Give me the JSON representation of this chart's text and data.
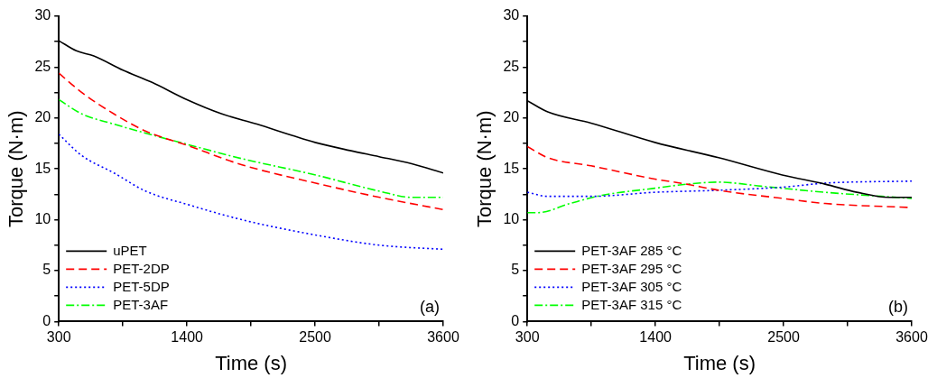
{
  "chart_data": [
    {
      "type": "line",
      "xlabel": "Time (s)",
      "ylabel": "Torque (N·m)",
      "annotations": [
        "(a)"
      ],
      "legend": "bottom left",
      "grid": false,
      "marker": "none",
      "xlim": [
        300,
        3600
      ],
      "xticks": [
        300,
        {
          "value": 850,
          "label": null
        },
        1400,
        {
          "value": 1950,
          "label": null
        },
        2500,
        {
          "value": 3050,
          "label": null
        },
        3600
      ],
      "ylim": [
        0,
        30
      ],
      "yticks": [
        0,
        {
          "value": 2.5,
          "label": null
        },
        5,
        {
          "value": 7.5,
          "label": null
        },
        10,
        {
          "value": 12.5,
          "label": null
        },
        15,
        {
          "value": 17.5,
          "label": null
        },
        20,
        {
          "value": 22.5,
          "label": null
        },
        25,
        {
          "value": 27.5,
          "label": null
        },
        30
      ],
      "series": [
        {
          "name": "uPET",
          "color": "#000000",
          "line_style": "solid",
          "x": [
            300,
            450,
            600,
            850,
            1100,
            1400,
            1700,
            2000,
            2300,
            2500,
            2800,
            3050,
            3330,
            3600
          ],
          "values": [
            27.6,
            26.6,
            26.1,
            24.7,
            23.5,
            21.8,
            20.4,
            19.4,
            18.3,
            17.6,
            16.8,
            16.2,
            15.5,
            14.6
          ]
        },
        {
          "name": "PET-2DP",
          "color": "#ff0000",
          "line_style": "dashed",
          "x": [
            300,
            498,
            773,
            1048,
            1405,
            1873,
            2505,
            3055,
            3600
          ],
          "values": [
            24.4,
            22.5,
            20.4,
            18.7,
            17.3,
            15.4,
            13.6,
            12.2,
            11.0
          ]
        },
        {
          "name": "PET-5DP",
          "color": "#0000ff",
          "line_style": "dotted",
          "x": [
            300,
            498,
            773,
            1048,
            1405,
            1873,
            2505,
            3055,
            3600
          ],
          "values": [
            18.4,
            16.3,
            14.6,
            12.8,
            11.5,
            10.0,
            8.5,
            7.5,
            7.1
          ]
        },
        {
          "name": "PET-3AF",
          "color": "#00ff00",
          "line_style": "dashdot",
          "x": [
            300,
            498,
            773,
            1048,
            1405,
            1873,
            2505,
            3055,
            3330,
            3600
          ],
          "values": [
            21.8,
            20.4,
            19.4,
            18.5,
            17.4,
            16.0,
            14.4,
            12.8,
            12.2,
            12.2
          ]
        }
      ]
    },
    {
      "type": "line",
      "xlabel": "Time (s)",
      "ylabel": "Torque (N·m)",
      "annotations": [
        "(b)"
      ],
      "legend": "bottom left",
      "grid": false,
      "marker": "none",
      "xlim": [
        300,
        3600
      ],
      "xticks": [
        300,
        {
          "value": 850,
          "label": null
        },
        1400,
        {
          "value": 1950,
          "label": null
        },
        2500,
        {
          "value": 3050,
          "label": null
        },
        3600
      ],
      "ylim": [
        0,
        30
      ],
      "yticks": [
        0,
        {
          "value": 2.5,
          "label": null
        },
        5,
        {
          "value": 7.5,
          "label": null
        },
        10,
        {
          "value": 12.5,
          "label": null
        },
        15,
        {
          "value": 17.5,
          "label": null
        },
        20,
        {
          "value": 22.5,
          "label": null
        },
        25,
        {
          "value": 27.5,
          "label": null
        },
        30
      ],
      "series": [
        {
          "name": "PET-3AF 285 °C",
          "color": "#000000",
          "line_style": "solid",
          "x": [
            300,
            475,
            847,
            1395,
            1942,
            2489,
            2856,
            3129,
            3403,
            3600
          ],
          "values": [
            21.7,
            20.6,
            19.5,
            17.6,
            16.1,
            14.4,
            13.5,
            12.7,
            12.2,
            12.2
          ]
        },
        {
          "name": "PET-3AF 295 °C",
          "color": "#ff0000",
          "line_style": "dashed",
          "x": [
            300,
            475,
            847,
            1395,
            1668,
            1942,
            2489,
            2856,
            3600
          ],
          "values": [
            17.2,
            16.1,
            15.3,
            14.0,
            13.5,
            12.9,
            12.1,
            11.6,
            11.2
          ]
        },
        {
          "name": "PET-3AF 305 °C",
          "color": "#0000ff",
          "line_style": "dotted",
          "x": [
            300,
            475,
            847,
            1395,
            1942,
            2489,
            2856,
            3600
          ],
          "values": [
            12.7,
            12.3,
            12.3,
            12.7,
            12.9,
            13.2,
            13.6,
            13.8
          ]
        },
        {
          "name": "PET-3AF 315 °C",
          "color": "#00ff00",
          "line_style": "dashdot",
          "x": [
            300,
            393,
            667,
            940,
            1395,
            1668,
            1942,
            2308,
            2856,
            3600
          ],
          "values": [
            10.7,
            10.7,
            11.6,
            12.4,
            13.1,
            13.5,
            13.7,
            13.3,
            12.7,
            12.1
          ]
        }
      ]
    }
  ]
}
